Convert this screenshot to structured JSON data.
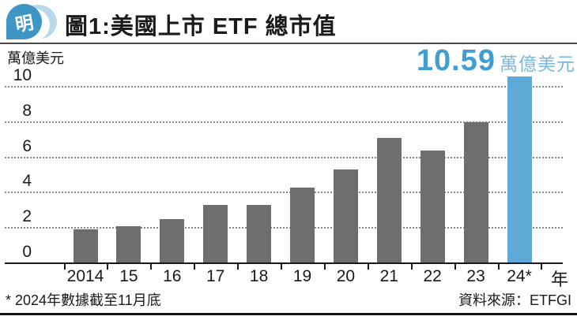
{
  "header": {
    "logo_char": "明"
  },
  "chart_data": {
    "type": "bar",
    "title": "圖1:美國上市 ETF 總市值",
    "unit_label": "萬億美元",
    "xlabel": "年",
    "ylabel": "萬億美元",
    "categories": [
      "2014",
      "15",
      "16",
      "17",
      "18",
      "19",
      "20",
      "21",
      "22",
      "23",
      "24*"
    ],
    "values": [
      1.9,
      2.1,
      2.5,
      3.3,
      3.3,
      4.3,
      5.3,
      7.1,
      6.4,
      8.0,
      10.59
    ],
    "highlight_index": 10,
    "highlight_annotation": {
      "value": "10.59",
      "unit": "萬億美元"
    },
    "yticks": [
      0,
      2,
      4,
      6,
      8,
      10
    ],
    "ylim": [
      0,
      11
    ],
    "x_axis_suffix": "年",
    "bar_color": "#6e6e6e",
    "highlight_color": "#5fa9d6",
    "grid": "dotted-horizontal",
    "legend": "none"
  },
  "footer": {
    "footnote": "* 2024年數據截至11月底",
    "source": "資料來源：ETFGI"
  }
}
